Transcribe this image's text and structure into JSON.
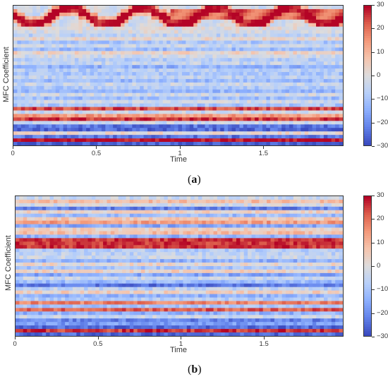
{
  "chart_data": [
    {
      "type": "heatmap",
      "caption": "(a)",
      "xlabel": "Time",
      "ylabel": "MFC Coefficient",
      "x_ticks": [
        "0",
        "0.5",
        "1",
        "1.5"
      ],
      "x_tick_values": [
        0,
        0.5,
        1,
        1.5
      ],
      "xlim": [
        0,
        1.98
      ],
      "colorbar_ticks": [
        "30",
        "20",
        "10",
        "0",
        "−10",
        "−20",
        "−30"
      ],
      "colorbar_values": [
        30,
        20,
        10,
        0,
        -10,
        -20,
        -30
      ],
      "vmin": -30,
      "vmax": 30,
      "cmap": "coolwarm",
      "n_coefficients": 40,
      "n_frames": 86,
      "coefficient_profile_top_to_bottom": [
        6,
        14,
        18,
        10,
        4,
        2,
        0,
        -1,
        -6,
        2,
        -10,
        -4,
        -12,
        3,
        -3,
        -8,
        -5,
        -14,
        -8,
        -10,
        -6,
        -12,
        -4,
        -9,
        -13,
        -3,
        -12,
        -3,
        -10,
        24,
        -4,
        14,
        26,
        -4,
        -24,
        -26,
        2,
        -24,
        30,
        -28
      ],
      "pattern": "alternating high band in top rows with periodic peaks; strong positive bands near bottom"
    },
    {
      "type": "heatmap",
      "caption": "(b)",
      "xlabel": "Time",
      "ylabel": "MFC Coefficient",
      "x_ticks": [
        "0",
        "0.5",
        "1",
        "1.5"
      ],
      "x_tick_values": [
        0,
        0.5,
        1,
        1.5
      ],
      "xlim": [
        0,
        1.98
      ],
      "colorbar_ticks": [
        "30",
        "20",
        "10",
        "0",
        "−10",
        "−20",
        "−30"
      ],
      "colorbar_values": [
        30,
        20,
        10,
        0,
        -10,
        -20,
        -30
      ],
      "vmin": -30,
      "vmax": 30,
      "cmap": "coolwarm",
      "n_coefficients": 40,
      "n_frames": 86,
      "coefficient_profile_top_to_bottom": [
        -4,
        8,
        -2,
        -22,
        4,
        -12,
        6,
        14,
        -16,
        4,
        8,
        -14,
        28,
        30,
        24,
        -8,
        -6,
        -4,
        -14,
        2,
        -10,
        4,
        -16,
        -4,
        -12,
        -24,
        -6,
        4,
        -14,
        -8,
        18,
        -10,
        22,
        -14,
        -4,
        -22,
        -18,
        -26,
        26,
        -26
      ],
      "pattern": "horizontal banding with a strong positive band in the upper third"
    }
  ]
}
